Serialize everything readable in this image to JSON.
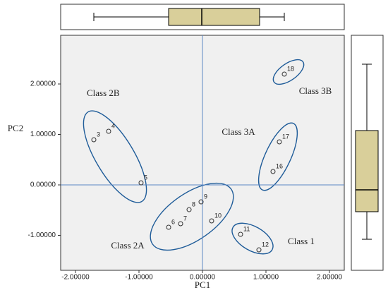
{
  "chart_data": {
    "type": "scatter",
    "x_label": "PC1",
    "y_label": "PC2",
    "x": [
      -1.711,
      -1.478,
      -0.967,
      -0.533,
      -0.344,
      -0.211,
      -0.022,
      0.144,
      0.6,
      0.889,
      1.111,
      1.211,
      1.289
    ],
    "y": [
      0.895,
      1.063,
      0.042,
      -0.839,
      -0.769,
      -0.49,
      -0.336,
      -0.713,
      -0.979,
      -1.287,
      0.266,
      0.853,
      2.196
    ],
    "point_labels": [
      "3",
      "4",
      "5",
      "6",
      "7",
      "8",
      "9",
      "10",
      "11",
      "12",
      "16",
      "17",
      "18"
    ],
    "xlim": [
      -2.2333,
      2.2333
    ],
    "ylim": [
      -1.692,
      2.965
    ],
    "xticks": [
      {
        "value": -2,
        "label": "-2.00000"
      },
      {
        "value": -1,
        "label": "-1.00000"
      },
      {
        "value": 0,
        "label": "0.00000"
      },
      {
        "value": 1,
        "label": "1.00000"
      },
      {
        "value": 2,
        "label": "2.00000"
      }
    ],
    "yticks": [
      {
        "value": -1,
        "label": "-1.00000"
      },
      {
        "value": 0,
        "label": "0.00000"
      },
      {
        "value": 1,
        "label": "1.00000"
      },
      {
        "value": 2,
        "label": "2.00000"
      }
    ],
    "annotations": [
      "Class 2B",
      "Class 3A",
      "Class 3B",
      "Class 2A",
      "Class 1"
    ],
    "reference_lines": {
      "x": 0,
      "y": 0
    },
    "boxplots": [
      {
        "axis": "x",
        "min": -1.711,
        "q1": -0.533,
        "median": -0.011,
        "q3": 0.9,
        "max": 1.289
      },
      {
        "axis": "y",
        "min": -1.077,
        "q1": -0.531,
        "median": -0.098,
        "q3": 1.077,
        "max": 2.392
      }
    ],
    "box_color": "#d9cf9a",
    "ellipse_color": "#1f5c99",
    "reference_color": "#5b87c5"
  }
}
